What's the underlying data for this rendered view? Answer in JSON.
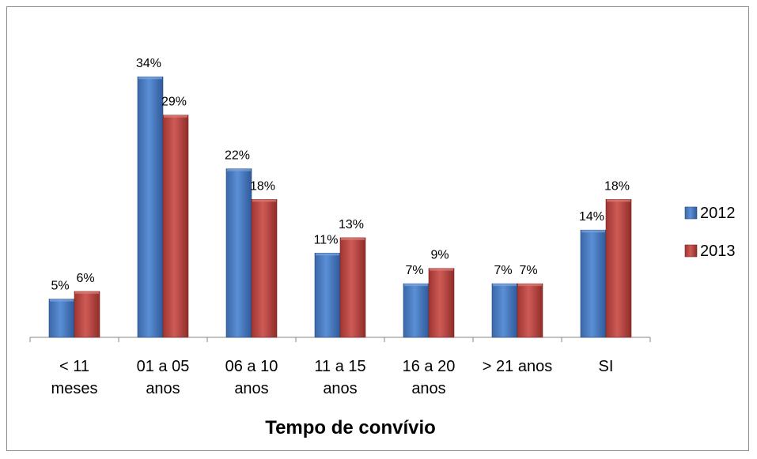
{
  "chart_data": {
    "type": "bar",
    "title": "",
    "xlabel": "Tempo de convívio",
    "ylabel": "",
    "grid": false,
    "legend_position": "right",
    "categories": [
      [
        "< 11",
        "meses"
      ],
      [
        "01 a 05",
        "anos"
      ],
      [
        "06 a 10",
        "anos"
      ],
      [
        "11 a 15",
        "anos"
      ],
      [
        "16 a 20",
        "anos"
      ],
      [
        "> 21 anos"
      ],
      [
        "SI"
      ]
    ],
    "series": [
      {
        "name": "2012",
        "color": "#4F81BD",
        "values": [
          5,
          34,
          22,
          11,
          7,
          7,
          14
        ],
        "labels": [
          "5%",
          "34%",
          "22%",
          "11%",
          "7%",
          "7%",
          "14%"
        ]
      },
      {
        "name": "2013",
        "color": "#C0504D",
        "values": [
          6,
          29,
          18,
          13,
          9,
          7,
          18
        ],
        "labels": [
          "6%",
          "29%",
          "18%",
          "13%",
          "9%",
          "7%",
          "18%"
        ]
      }
    ],
    "value_suffix": "%",
    "ylim": [
      0,
      35
    ]
  }
}
